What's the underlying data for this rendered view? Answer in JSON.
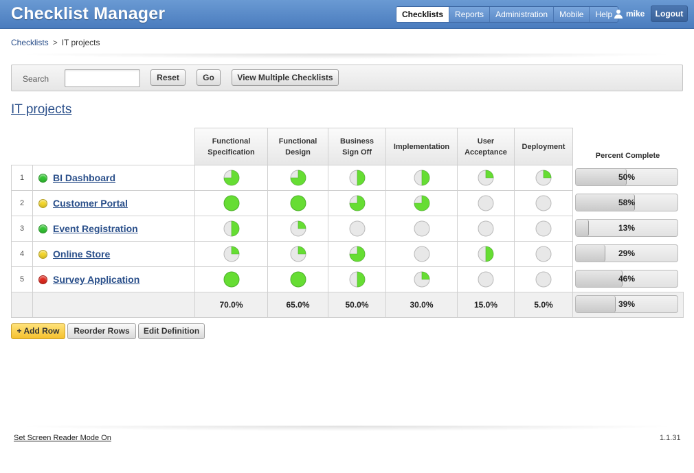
{
  "app": {
    "title": "Checklist Manager"
  },
  "nav": {
    "items": [
      {
        "label": "Checklists",
        "active": true
      },
      {
        "label": "Reports",
        "active": false
      },
      {
        "label": "Administration",
        "active": false
      },
      {
        "label": "Mobile",
        "active": false
      },
      {
        "label": "Help",
        "active": false
      }
    ],
    "username": "mike",
    "logout_label": "Logout"
  },
  "breadcrumb": {
    "root": "Checklists",
    "separator": ">",
    "current": "IT projects"
  },
  "search": {
    "label": "Search",
    "value": "",
    "reset_label": "Reset",
    "go_label": "Go",
    "multi_label": "View Multiple Checklists"
  },
  "checklist": {
    "title": "IT projects",
    "columns": [
      [
        "Functional",
        "Specification"
      ],
      [
        "Functional",
        "Design"
      ],
      [
        "Business",
        "Sign Off"
      ],
      [
        "Implementation"
      ],
      [
        "User",
        "Acceptance"
      ],
      [
        "Deployment"
      ]
    ],
    "percent_header": "Percent Complete",
    "rows": [
      {
        "num": "1",
        "name": "BI Dashboard",
        "status": "green",
        "progress": [
          0.75,
          0.75,
          0.5,
          0.5,
          0.25,
          0.25
        ],
        "percent": "50%",
        "percent_value": 0.5
      },
      {
        "num": "2",
        "name": "Customer Portal",
        "status": "yellow",
        "progress": [
          1,
          1,
          0.75,
          0.75,
          0,
          0
        ],
        "percent": "58%",
        "percent_value": 0.58
      },
      {
        "num": "3",
        "name": "Event Registration",
        "status": "green",
        "progress": [
          0.5,
          0.25,
          0,
          0,
          0,
          0
        ],
        "percent": "13%",
        "percent_value": 0.13
      },
      {
        "num": "4",
        "name": "Online Store",
        "status": "yellow",
        "progress": [
          0.25,
          0.25,
          0.75,
          0,
          0.5,
          0
        ],
        "percent": "29%",
        "percent_value": 0.29
      },
      {
        "num": "5",
        "name": "Survey Application",
        "status": "red",
        "progress": [
          1,
          1,
          0.5,
          0.25,
          0,
          0
        ],
        "percent": "46%",
        "percent_value": 0.46
      }
    ],
    "totals": [
      "70.0%",
      "65.0%",
      "50.0%",
      "30.0%",
      "15.0%",
      "5.0%"
    ],
    "total_percent": "39%",
    "total_percent_value": 0.39
  },
  "actions": {
    "add_row": "+ Add Row",
    "reorder_rows": "Reorder Rows",
    "edit_definition": "Edit Definition"
  },
  "footer": {
    "screen_reader_link": "Set Screen Reader Mode On",
    "version": "1.1.31"
  },
  "colors": {
    "header_blue": "#5b8ac8",
    "link_blue": "#2a4f8a",
    "pie_green": "#66dd33",
    "pie_empty": "#e8e8e8",
    "status_green": "#33c533",
    "status_yellow": "#f3d62b",
    "status_red": "#e02a1f",
    "add_row_yellow": "#f5c12e"
  }
}
